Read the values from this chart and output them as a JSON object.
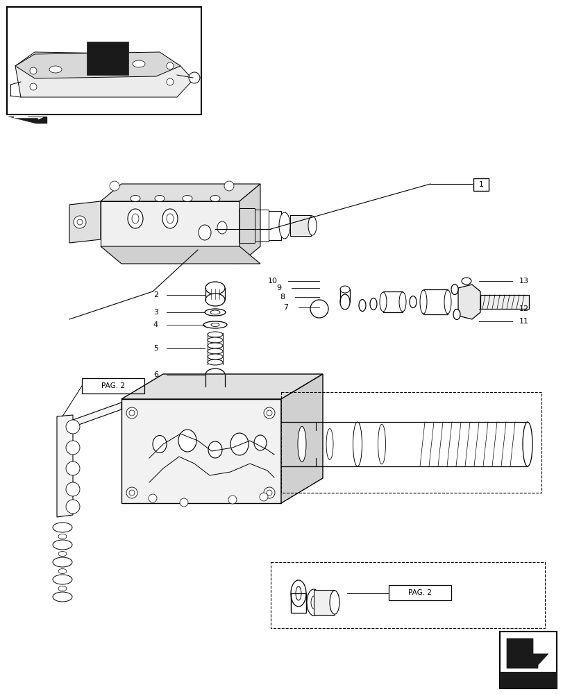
{
  "bg_color": "#ffffff",
  "line_color": "#000000",
  "fig_width": 8.12,
  "fig_height": 10.0,
  "dpi": 100
}
